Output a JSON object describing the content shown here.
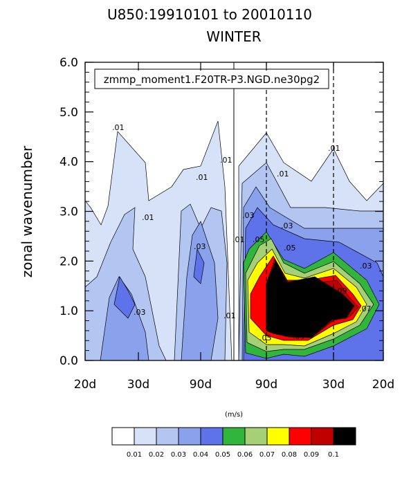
{
  "chart_data": {
    "type": "heatmap",
    "title": "U850:19910101 to 20010110",
    "subtitle": "WINTER",
    "ylabel": "zonal wavenumber",
    "annotation": "zmmp_moment1.F20TR-P3.NGD.ne30pg2",
    "unit": "(m/s)",
    "x_tick_labels": [
      "20d",
      "30d",
      "90d",
      "90d",
      "30d",
      "20d"
    ],
    "y_tick_labels": [
      "0.0",
      "1.0",
      "2.0",
      "3.0",
      "4.0",
      "5.0",
      "6.0"
    ],
    "ylim": [
      0,
      6
    ],
    "contour_levels": [
      "0.01",
      "0.02",
      "0.03",
      "0.04",
      "0.05",
      "0.06",
      "0.07",
      "0.08",
      "0.09",
      "0.1"
    ],
    "colors": [
      "#ffffff",
      "#d6e2f8",
      "#b3c6f2",
      "#8aa1ec",
      "#5e72ea",
      "#32b53c",
      "#a6d076",
      "#ffff00",
      "#ff0000",
      "#c00000",
      "#000000"
    ],
    "contour_line_labels": [
      ".01",
      ".01",
      ".01",
      ".01",
      ".01",
      ".01",
      ".01",
      ".01",
      ".03",
      ".03",
      ".03",
      ".03",
      ".05",
      ".05",
      ".05",
      ".07",
      ".07",
      ".09",
      ".09",
      ".03"
    ]
  }
}
